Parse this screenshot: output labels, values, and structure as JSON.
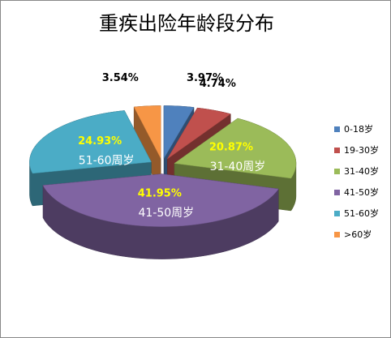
{
  "chart_data": {
    "type": "pie",
    "title": "重疾出险年龄段分布",
    "categories": [
      "0-18岁",
      "19-30岁",
      "31-40岁",
      "41-50岁",
      "51-60岁",
      ">60岁"
    ],
    "values": [
      3.97,
      4.74,
      20.87,
      41.95,
      24.93,
      3.54
    ],
    "value_labels": [
      "3.97%",
      "4.74%",
      "20.87%",
      "41.95%",
      "24.93%",
      "3.54%"
    ],
    "value_label_colors": [
      "#000000",
      "#000000",
      "#ffff00",
      "#ffff00",
      "#ffff00",
      "#000000"
    ],
    "slice_labels": [
      null,
      null,
      "31-40周岁",
      "41-50周岁",
      "51-60周岁",
      null
    ],
    "colors": [
      "#4f81bd",
      "#c0504d",
      "#9bbb59",
      "#8064a2",
      "#4bacc6",
      "#f79646"
    ],
    "legend": "right"
  }
}
